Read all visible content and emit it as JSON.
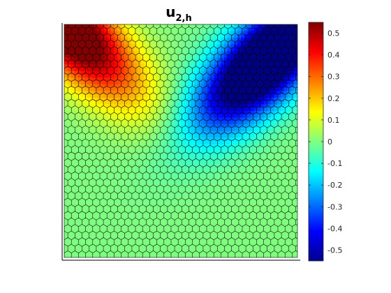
{
  "chart_data": {
    "type": "heatmap",
    "title": {
      "main": "u",
      "subscript": "2,h"
    },
    "xlabel": "",
    "ylabel": "",
    "colormap": "jet",
    "color_range": [
      -0.55,
      0.55
    ],
    "colorbar": {
      "placement": "right",
      "ticks": [
        0.5,
        0.4,
        0.3,
        0.2,
        0.1,
        0,
        -0.1,
        -0.2,
        -0.3,
        -0.4,
        -0.5
      ],
      "tick_labels": [
        "0.5",
        "0.4",
        "0.3",
        "0.2",
        "0.1",
        "0",
        "-0.1",
        "-0.2",
        "-0.3",
        "-0.4",
        "-0.5"
      ]
    },
    "mesh": "polygonal (hexagonal/Voronoi-like cells) over the unit square",
    "field_features": [
      {
        "description": "positive lobe along upper-left diagonal",
        "peak_value": 0.5
      },
      {
        "description": "negative lobe along upper-right diagonal",
        "min_value": -0.55
      },
      {
        "description": "near-zero field over lower half",
        "value": 0
      }
    ],
    "grid": false
  }
}
